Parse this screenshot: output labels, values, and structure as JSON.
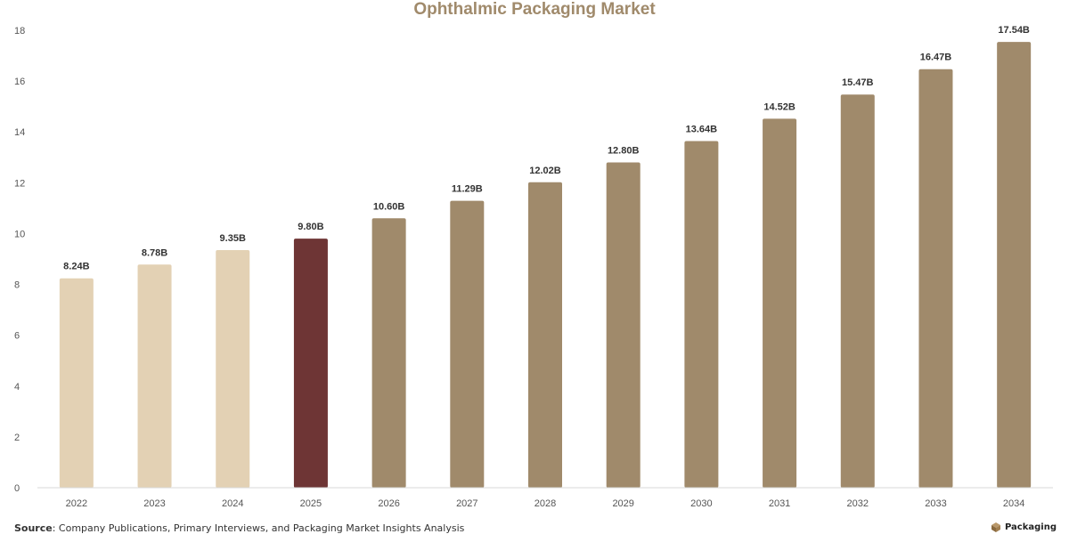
{
  "chart_data": {
    "type": "bar",
    "title": "Ophthalmic Packaging Market",
    "categories": [
      "2022",
      "2023",
      "2024",
      "2025",
      "2026",
      "2027",
      "2028",
      "2029",
      "2030",
      "2031",
      "2032",
      "2033",
      "2034"
    ],
    "values": [
      8.24,
      8.78,
      9.35,
      9.8,
      10.6,
      11.29,
      12.02,
      12.8,
      13.64,
      14.52,
      15.47,
      16.47,
      17.54
    ],
    "data_labels": [
      "8.24B",
      "8.78B",
      "9.35B",
      "9.80B",
      "10.60B",
      "11.29B",
      "12.02B",
      "12.80B",
      "13.64B",
      "14.52B",
      "15.47B",
      "16.47B",
      "17.54B"
    ],
    "bar_colors": [
      "#e3d1b4",
      "#e3d1b4",
      "#e3d1b4",
      "#6e3535",
      "#a08a6b",
      "#a08a6b",
      "#a08a6b",
      "#a08a6b",
      "#a08a6b",
      "#a08a6b",
      "#a08a6b",
      "#a08a6b",
      "#a08a6b"
    ],
    "ylim": [
      0,
      18
    ],
    "yticks": [
      0,
      2,
      4,
      6,
      8,
      10,
      12,
      14,
      16,
      18
    ],
    "xlabel": "",
    "ylabel": "",
    "grid": false,
    "legend": "none"
  },
  "footer": {
    "source_label": "Source",
    "source_text": ": Company Publications, Primary Interviews, and Packaging Market Insights Analysis",
    "brand": "Packaging"
  },
  "colors": {
    "title": "#a08a6b",
    "historical": "#e3d1b4",
    "base_year": "#6e3535",
    "forecast": "#a08a6b"
  }
}
